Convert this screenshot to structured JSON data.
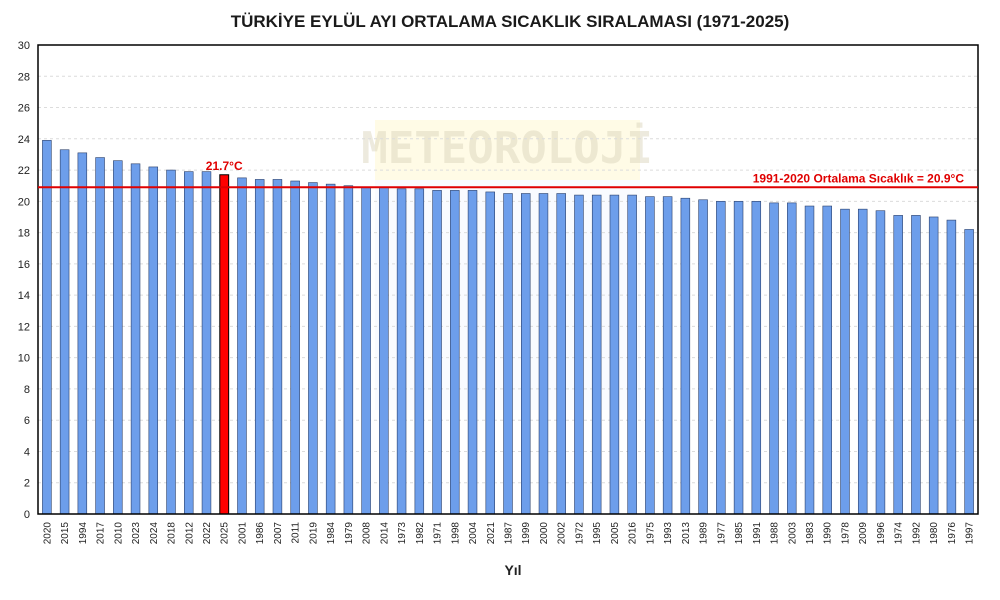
{
  "chart_data": {
    "type": "bar",
    "title": "TÜRKİYE EYLÜL AYI ORTALAMA SICAKLIK SIRALAMASI (1971-2025)",
    "xlabel": "Yıl",
    "ylabel": "",
    "ylim": [
      0,
      30
    ],
    "y_ticks": [
      0,
      2,
      4,
      6,
      8,
      10,
      12,
      14,
      16,
      18,
      20,
      22,
      24,
      26,
      28,
      30
    ],
    "grid": true,
    "categories": [
      "2020",
      "2015",
      "1994",
      "2017",
      "2010",
      "2023",
      "2024",
      "2018",
      "2012",
      "2022",
      "2025",
      "2001",
      "1986",
      "2007",
      "2011",
      "2019",
      "1984",
      "1979",
      "2008",
      "2014",
      "1973",
      "1982",
      "1971",
      "1998",
      "2004",
      "2021",
      "1987",
      "1999",
      "2000",
      "2002",
      "1972",
      "1995",
      "2005",
      "2016",
      "1975",
      "1993",
      "2013",
      "1989",
      "1977",
      "1985",
      "1991",
      "1988",
      "2003",
      "1983",
      "1990",
      "1978",
      "2009",
      "1996",
      "1974",
      "1992",
      "1980",
      "1976",
      "1997"
    ],
    "values": [
      23.9,
      23.3,
      23.1,
      22.8,
      22.6,
      22.4,
      22.2,
      22.0,
      21.9,
      21.9,
      21.7,
      21.5,
      21.4,
      21.4,
      21.3,
      21.2,
      21.1,
      21.0,
      20.9,
      20.9,
      20.8,
      20.8,
      20.7,
      20.7,
      20.7,
      20.6,
      20.5,
      20.5,
      20.5,
      20.5,
      20.4,
      20.4,
      20.4,
      20.4,
      20.3,
      20.3,
      20.2,
      20.1,
      20.0,
      20.0,
      20.0,
      19.9,
      19.9,
      19.7,
      19.7,
      19.5,
      19.5,
      19.4,
      19.1,
      19.1,
      19.0,
      18.8,
      18.2
    ],
    "highlight": {
      "category": "2025",
      "label": "21.7°C",
      "color": "#ff0000"
    },
    "bar_color": "#6d9eeb",
    "reference_line": {
      "value": 20.9,
      "label": "1991-2020 Ortalama Sıcaklık = 20.9°C",
      "color": "#e00000"
    }
  },
  "watermark": {
    "text": "METEOROLOJİ"
  }
}
